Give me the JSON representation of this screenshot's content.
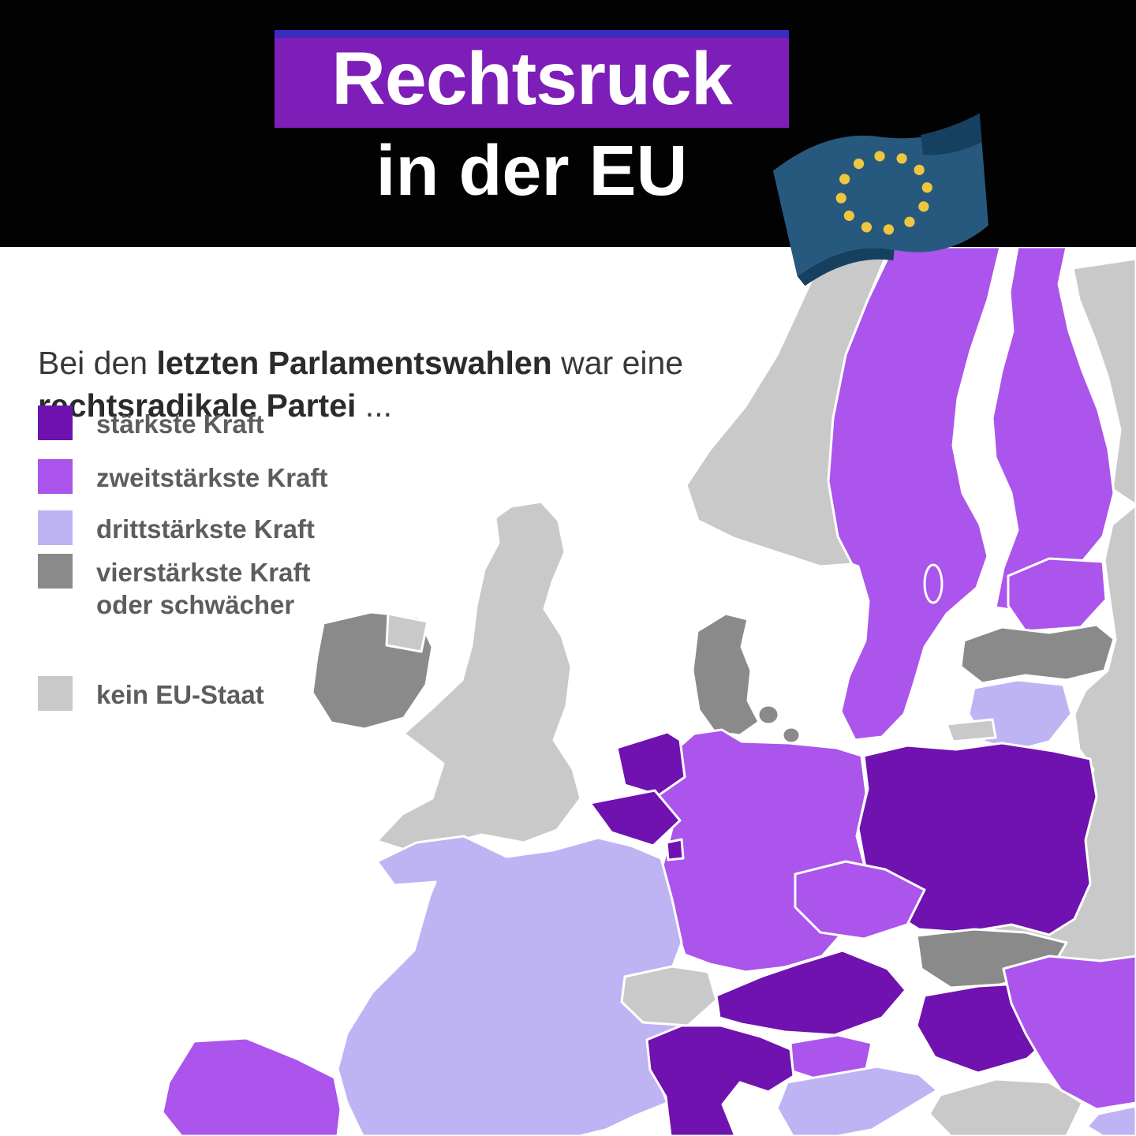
{
  "header": {
    "badge_text": "Rechtsruck",
    "subtitle": "in der EU",
    "band_bg": "#020202",
    "badge_bg": "#7e1eb8",
    "badge_top_strip": "#3a2dbb"
  },
  "flag": {
    "name": "eu-flag",
    "blue": "#27597e",
    "blue_dark": "#16405f",
    "star_color": "#f1c63f"
  },
  "intro": {
    "part1": "Bei den ",
    "bold1": "letzten Parlamentswahlen",
    "part2": " war eine ",
    "bold2": "rechtsradikale Partei",
    "part3": " ..."
  },
  "legend": {
    "colors": {
      "strongest": "#6f12b0",
      "second": "#ab55ec",
      "third": "#beb4f4",
      "fourth_or_weaker": "#8a8a8a",
      "non_eu": "#c9c9c9"
    },
    "items": [
      {
        "key": "strongest",
        "label": "stärkste Kraft"
      },
      {
        "key": "second",
        "label": "zweitstärkste Kraft"
      },
      {
        "key": "third",
        "label": "drittstärkste Kraft"
      },
      {
        "key": "fourth_or_weaker",
        "label": "vierstärkste Kraft oder schwächer"
      },
      {
        "key": "non_eu",
        "label": "kein EU-Staat"
      }
    ]
  },
  "map": {
    "sea_color": "#ffffff",
    "border_color": "#ffffff",
    "countries": [
      {
        "id": "norway",
        "category": "non_eu"
      },
      {
        "id": "russia-north",
        "category": "non_eu"
      },
      {
        "id": "belarus-ukraine",
        "category": "non_eu"
      },
      {
        "id": "kaliningrad",
        "category": "non_eu"
      },
      {
        "id": "uk",
        "category": "non_eu"
      },
      {
        "id": "northern-ireland",
        "category": "non_eu"
      },
      {
        "id": "switzerland",
        "category": "non_eu"
      },
      {
        "id": "bosnia-serbia",
        "category": "non_eu"
      },
      {
        "id": "sweden",
        "category": "second"
      },
      {
        "id": "finland",
        "category": "second"
      },
      {
        "id": "gotland",
        "category": "second"
      },
      {
        "id": "estonia",
        "category": "second"
      },
      {
        "id": "germany",
        "category": "second"
      },
      {
        "id": "czechia",
        "category": "second"
      },
      {
        "id": "slovenia",
        "category": "second"
      },
      {
        "id": "spain",
        "category": "second"
      },
      {
        "id": "romania",
        "category": "second"
      },
      {
        "id": "latvia",
        "category": "fourth_or_weaker"
      },
      {
        "id": "denmark",
        "category": "fourth_or_weaker"
      },
      {
        "id": "ireland",
        "category": "fourth_or_weaker"
      },
      {
        "id": "slovakia",
        "category": "fourth_or_weaker"
      },
      {
        "id": "lithuania",
        "category": "third"
      },
      {
        "id": "france",
        "category": "third"
      },
      {
        "id": "croatia",
        "category": "third"
      },
      {
        "id": "bulgaria",
        "category": "third"
      },
      {
        "id": "netherlands",
        "category": "strongest"
      },
      {
        "id": "belgium",
        "category": "strongest"
      },
      {
        "id": "luxembourg",
        "category": "strongest"
      },
      {
        "id": "poland",
        "category": "strongest"
      },
      {
        "id": "austria",
        "category": "strongest"
      },
      {
        "id": "hungary",
        "category": "strongest"
      },
      {
        "id": "italy",
        "category": "strongest"
      }
    ]
  }
}
